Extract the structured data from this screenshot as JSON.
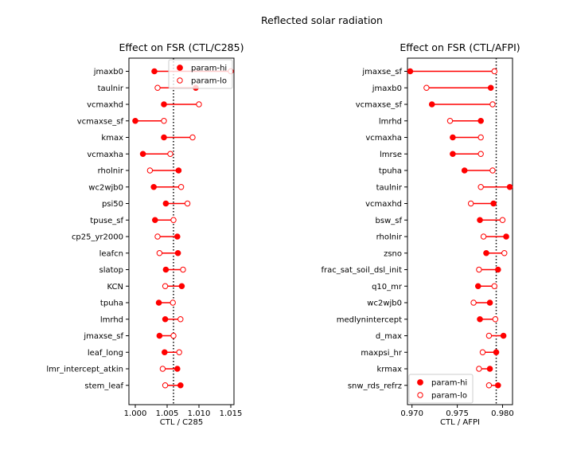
{
  "figure_title": "Reflected solar radiation",
  "colors": {
    "marker": "#ff0000",
    "line": "#ff0000",
    "vline": "#000000"
  },
  "chart_data": [
    {
      "type": "dumbbell",
      "title": "Effect on FSR (CTL/C285)",
      "xlabel": "CTL / C285",
      "xlim": [
        0.999,
        1.0155
      ],
      "xticks": [
        1.0,
        1.005,
        1.01,
        1.015
      ],
      "xtick_labels": [
        "1.000",
        "1.005",
        "1.010",
        "1.015"
      ],
      "ref_line": 1.006,
      "legend": {
        "loc": "upper right",
        "hi": "param-hi",
        "lo": "param-lo"
      },
      "categories": [
        "jmaxb0",
        "taulnir",
        "vcmaxhd",
        "vcmaxse_sf",
        "kmax",
        "vcmaxha",
        "rholnir",
        "wc2wjb0",
        "psi50",
        "tpuse_sf",
        "cp25_yr2000",
        "leafcn",
        "slatop",
        "KCN",
        "tpuha",
        "lmrhd",
        "jmaxse_sf",
        "leaf_long",
        "lmr_intercept_atkin",
        "stem_leaf"
      ],
      "series": [
        {
          "name": "param-hi",
          "values": [
            1.003,
            1.0095,
            1.0045,
            1.0,
            1.0045,
            1.0012,
            1.0068,
            1.0029,
            1.0048,
            1.0031,
            1.0066,
            1.0067,
            1.0048,
            1.0073,
            1.0037,
            1.0047,
            1.0038,
            1.0046,
            1.0066,
            1.0071
          ]
        },
        {
          "name": "param-lo",
          "values": [
            1.015,
            1.0035,
            1.01,
            1.0045,
            1.009,
            1.0055,
            1.0023,
            1.0072,
            1.0082,
            1.006,
            1.0035,
            1.0038,
            1.0075,
            1.0047,
            1.0059,
            1.0071,
            1.006,
            1.0069,
            1.0043,
            1.0047
          ]
        }
      ]
    },
    {
      "type": "dumbbell",
      "title": "Effect on FSR (CTL/AFPI)",
      "xlabel": "CTL / AFPI",
      "xlim": [
        0.9695,
        0.9811
      ],
      "xticks": [
        0.97,
        0.975,
        0.98
      ],
      "xtick_labels": [
        "0.970",
        "0.975",
        "0.980"
      ],
      "ref_line": 0.9793,
      "legend": {
        "loc": "lower left",
        "hi": "param-hi",
        "lo": "param-lo"
      },
      "categories": [
        "jmaxse_sf",
        "jmaxb0",
        "vcmaxse_sf",
        "lmrhd",
        "vcmaxha",
        "lmrse",
        "tpuha",
        "taulnir",
        "vcmaxhd",
        "bsw_sf",
        "rholnir",
        "zsno",
        "frac_sat_soil_dsl_init",
        "q10_mr",
        "wc2wjb0",
        "medlynintercept",
        "d_max",
        "maxpsi_hr",
        "krmax",
        "snw_rds_refrz"
      ],
      "series": [
        {
          "name": "param-hi",
          "values": [
            0.9698,
            0.9787,
            0.9722,
            0.9776,
            0.9745,
            0.9745,
            0.9758,
            0.9808,
            0.979,
            0.9775,
            0.9804,
            0.9782,
            0.9795,
            0.9773,
            0.9786,
            0.9775,
            0.9801,
            0.9793,
            0.9786,
            0.9795
          ]
        },
        {
          "name": "param-lo",
          "values": [
            0.9791,
            0.9716,
            0.9789,
            0.9742,
            0.9776,
            0.9776,
            0.9789,
            0.9776,
            0.9765,
            0.98,
            0.9779,
            0.9802,
            0.9774,
            0.9791,
            0.9768,
            0.9792,
            0.9785,
            0.9778,
            0.9774,
            0.9785
          ]
        }
      ]
    }
  ]
}
